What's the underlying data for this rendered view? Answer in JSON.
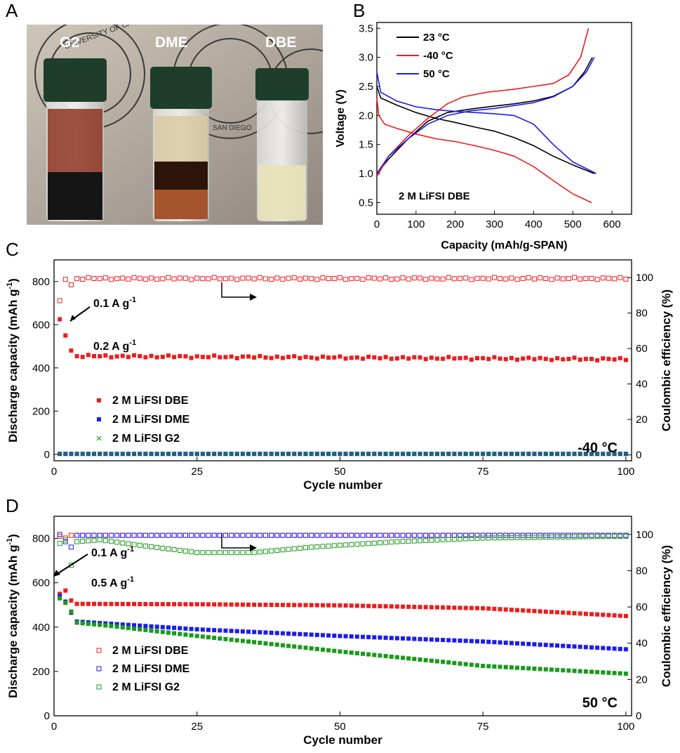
{
  "panels": {
    "A": {
      "letter": "A"
    },
    "B": {
      "letter": "B"
    },
    "C": {
      "letter": "C"
    },
    "D": {
      "letter": "D"
    }
  },
  "photo": {
    "vial_labels": [
      "G2",
      "DME",
      "DBE"
    ],
    "vial_colors": {
      "cap": "#1f3d2b",
      "g2_liquid": "#1a1a1a",
      "g2_residue": "#7a1a10",
      "dme_liquid": "#3a1a0a",
      "dme_residue": "#a5532a",
      "dbe_liquid": "#e6e2b8"
    },
    "seal_text": [
      "UNIVERSITY OF CALIFORNIA",
      "SAN DIEGO"
    ]
  },
  "chart_data": [
    {
      "id": "B",
      "type": "line",
      "xlabel": "Capacity (mAh/g-SPAN)",
      "ylabel": "Voltage (V)",
      "xlim": [
        0,
        650
      ],
      "ylim": [
        0.3,
        3.6
      ],
      "xticks": [
        0,
        100,
        200,
        300,
        400,
        500,
        600
      ],
      "yticks": [
        0.5,
        1.0,
        1.5,
        2.0,
        2.5,
        3.0,
        3.5
      ],
      "annotation": "2 M LiFSI DBE",
      "legend_position": "top-left",
      "series": [
        {
          "name": "23 °C",
          "color": "#000000",
          "discharge": [
            [
              0,
              2.5
            ],
            [
              10,
              2.3
            ],
            [
              50,
              2.18
            ],
            [
              100,
              2.05
            ],
            [
              150,
              1.95
            ],
            [
              200,
              1.88
            ],
            [
              250,
              1.8
            ],
            [
              300,
              1.73
            ],
            [
              350,
              1.62
            ],
            [
              400,
              1.48
            ],
            [
              450,
              1.3
            ],
            [
              500,
              1.15
            ],
            [
              555,
              1.0
            ]
          ],
          "charge": [
            [
              0,
              1.0
            ],
            [
              30,
              1.25
            ],
            [
              80,
              1.6
            ],
            [
              130,
              1.9
            ],
            [
              180,
              2.05
            ],
            [
              250,
              2.12
            ],
            [
              300,
              2.16
            ],
            [
              350,
              2.2
            ],
            [
              400,
              2.25
            ],
            [
              450,
              2.33
            ],
            [
              500,
              2.5
            ],
            [
              530,
              2.75
            ],
            [
              550,
              3.0
            ]
          ]
        },
        {
          "name": "-40 °C",
          "color": "#ee1c1c",
          "discharge": [
            [
              0,
              2.3
            ],
            [
              5,
              2.0
            ],
            [
              20,
              1.85
            ],
            [
              50,
              1.78
            ],
            [
              100,
              1.68
            ],
            [
              150,
              1.6
            ],
            [
              200,
              1.55
            ],
            [
              250,
              1.48
            ],
            [
              300,
              1.4
            ],
            [
              350,
              1.3
            ],
            [
              400,
              1.12
            ],
            [
              450,
              0.88
            ],
            [
              500,
              0.65
            ],
            [
              548,
              0.5
            ]
          ],
          "charge": [
            [
              0,
              0.95
            ],
            [
              30,
              1.3
            ],
            [
              80,
              1.65
            ],
            [
              130,
              1.95
            ],
            [
              180,
              2.2
            ],
            [
              220,
              2.32
            ],
            [
              280,
              2.4
            ],
            [
              350,
              2.45
            ],
            [
              400,
              2.5
            ],
            [
              450,
              2.55
            ],
            [
              490,
              2.7
            ],
            [
              520,
              3.0
            ],
            [
              540,
              3.5
            ]
          ]
        },
        {
          "name": "50 °C",
          "color": "#1c1cee",
          "discharge": [
            [
              0,
              2.75
            ],
            [
              10,
              2.4
            ],
            [
              50,
              2.25
            ],
            [
              100,
              2.15
            ],
            [
              150,
              2.1
            ],
            [
              200,
              2.07
            ],
            [
              250,
              2.05
            ],
            [
              300,
              2.03
            ],
            [
              350,
              2.0
            ],
            [
              400,
              1.85
            ],
            [
              450,
              1.5
            ],
            [
              500,
              1.2
            ],
            [
              560,
              1.0
            ]
          ],
          "charge": [
            [
              0,
              1.0
            ],
            [
              30,
              1.3
            ],
            [
              80,
              1.6
            ],
            [
              130,
              1.85
            ],
            [
              180,
              2.0
            ],
            [
              240,
              2.08
            ],
            [
              300,
              2.12
            ],
            [
              350,
              2.17
            ],
            [
              400,
              2.22
            ],
            [
              450,
              2.32
            ],
            [
              500,
              2.5
            ],
            [
              535,
              2.75
            ],
            [
              555,
              3.0
            ]
          ]
        }
      ]
    },
    {
      "id": "C",
      "type": "scatter",
      "xlabel": "Cycle number",
      "ylabel": "Discharge capacity (mAh g",
      "ylabel_sup": "-1",
      "ylabel_end": ")",
      "y2label": "Coulombic efficiency (%)",
      "xlim": [
        0,
        101
      ],
      "ylim": [
        -30,
        900
      ],
      "y2lim": [
        -3.33,
        110
      ],
      "xticks": [
        0,
        25,
        50,
        75,
        100
      ],
      "yticks": [
        0,
        200,
        400,
        600,
        800
      ],
      "y2ticks": [
        0,
        20,
        40,
        60,
        80,
        100
      ],
      "temperature": "-40 °C",
      "arrow_note_1": "0.1 A g",
      "arrow_note_2": "0.2 A g",
      "note_sup": "-1",
      "legend": [
        {
          "name": "2 M LiFSI DBE",
          "color": "#ee1c1c",
          "marker": "filled-square"
        },
        {
          "name": "2 M LiFSI DME",
          "color": "#1c1cee",
          "marker": "filled-square"
        },
        {
          "name": "2 M LiFSI G2",
          "color": "#1a9a1a",
          "marker": "cross"
        }
      ],
      "series": [
        {
          "name": "DBE capacity",
          "axis": "left",
          "color": "#ee1c1c",
          "marker": "filled",
          "first": [
            [
              1,
              625
            ],
            [
              2,
              550
            ],
            [
              3,
              480
            ]
          ],
          "plateau_start": 4,
          "plateau_end": 100,
          "plateau_from": 455,
          "plateau_to": 440,
          "jitter": 6
        },
        {
          "name": "DBE CE",
          "axis": "right",
          "color": "#ee1c1c",
          "marker": "open",
          "first": [
            [
              1,
              87
            ],
            [
              2,
              99
            ],
            [
              3,
              96
            ]
          ],
          "plateau_start": 4,
          "plateau_end": 100,
          "plateau_from": 99.5,
          "plateau_to": 99.5,
          "jitter": 0.6
        },
        {
          "name": "DME capacity",
          "axis": "left",
          "color": "#1c1cee",
          "marker": "filled",
          "first": [],
          "plateau_start": 1,
          "plateau_end": 100,
          "plateau_from": 2,
          "plateau_to": 2,
          "jitter": 0
        },
        {
          "name": "G2 capacity",
          "axis": "left",
          "color": "#1a9a1a",
          "marker": "cross",
          "first": [],
          "plateau_start": 1,
          "plateau_end": 100,
          "plateau_from": 2,
          "plateau_to": 2,
          "jitter": 0
        }
      ]
    },
    {
      "id": "D",
      "type": "scatter",
      "xlabel": "Cycle number",
      "ylabel": "Discharge capacity (mAh g",
      "ylabel_sup": "-1",
      "ylabel_end": ")",
      "y2label": "Coulombic efficiency (%)",
      "xlim": [
        0,
        101
      ],
      "ylim": [
        0,
        900
      ],
      "y2lim": [
        0,
        110
      ],
      "xticks": [
        0,
        25,
        50,
        75,
        100
      ],
      "yticks": [
        0,
        200,
        400,
        600,
        800
      ],
      "y2ticks": [
        0,
        20,
        40,
        60,
        80,
        100
      ],
      "temperature": "50 °C",
      "arrow_note_1": "0.1 A g",
      "arrow_note_2": "0.5 A g",
      "note_sup": "-1",
      "legend": [
        {
          "name": "2 M LiFSI DBE",
          "color": "#ee1c1c",
          "marker": "open-square"
        },
        {
          "name": "2 M LiFSI DME",
          "color": "#1c1cee",
          "marker": "open-square"
        },
        {
          "name": "2 M LiFSI G2",
          "color": "#1a9a1a",
          "marker": "open-square"
        }
      ],
      "series": [
        {
          "name": "DBE capacity",
          "axis": "left",
          "color": "#ee1c1c",
          "marker": "filled",
          "first": [
            [
              1,
              550
            ],
            [
              2,
              565
            ],
            [
              3,
              520
            ]
          ],
          "curve": [
            [
              4,
              505
            ],
            [
              25,
              503
            ],
            [
              50,
              498
            ],
            [
              75,
              485
            ],
            [
              100,
              450
            ]
          ]
        },
        {
          "name": "DME capacity",
          "axis": "left",
          "color": "#1c1cee",
          "marker": "filled",
          "first": [
            [
              1,
              540
            ],
            [
              2,
              515
            ],
            [
              3,
              465
            ]
          ],
          "curve": [
            [
              4,
              425
            ],
            [
              25,
              390
            ],
            [
              50,
              360
            ],
            [
              75,
              335
            ],
            [
              100,
              300
            ]
          ]
        },
        {
          "name": "G2 capacity",
          "axis": "left",
          "color": "#1a9a1a",
          "marker": "filled",
          "first": [
            [
              1,
              530
            ],
            [
              2,
              510
            ],
            [
              3,
              470
            ]
          ],
          "curve": [
            [
              4,
              420
            ],
            [
              10,
              405
            ],
            [
              25,
              360
            ],
            [
              50,
              290
            ],
            [
              75,
              225
            ],
            [
              100,
              190
            ]
          ]
        },
        {
          "name": "DBE CE",
          "axis": "right",
          "color": "#ee1c1c",
          "marker": "open",
          "first": [
            [
              1,
              99
            ],
            [
              2,
              98
            ]
          ],
          "curve": [
            [
              3,
              99.5
            ],
            [
              100,
              99.5
            ]
          ]
        },
        {
          "name": "DME CE",
          "axis": "right",
          "color": "#1c1cee",
          "marker": "open",
          "first": [
            [
              1,
              100
            ],
            [
              2,
              96
            ],
            [
              3,
              93
            ]
          ],
          "curve": [
            [
              4,
              99.5
            ],
            [
              100,
              99.5
            ]
          ]
        },
        {
          "name": "G2 CE",
          "axis": "right",
          "color": "#1a9a1a",
          "marker": "open",
          "first": [
            [
              1,
              95
            ],
            [
              2,
              97
            ],
            [
              3,
              83
            ]
          ],
          "curve": [
            [
              4,
              96
            ],
            [
              8,
              97
            ],
            [
              15,
              94
            ],
            [
              25,
              90
            ],
            [
              35,
              90
            ],
            [
              45,
              93
            ],
            [
              60,
              96
            ],
            [
              75,
              98
            ],
            [
              100,
              99
            ]
          ]
        }
      ]
    }
  ]
}
